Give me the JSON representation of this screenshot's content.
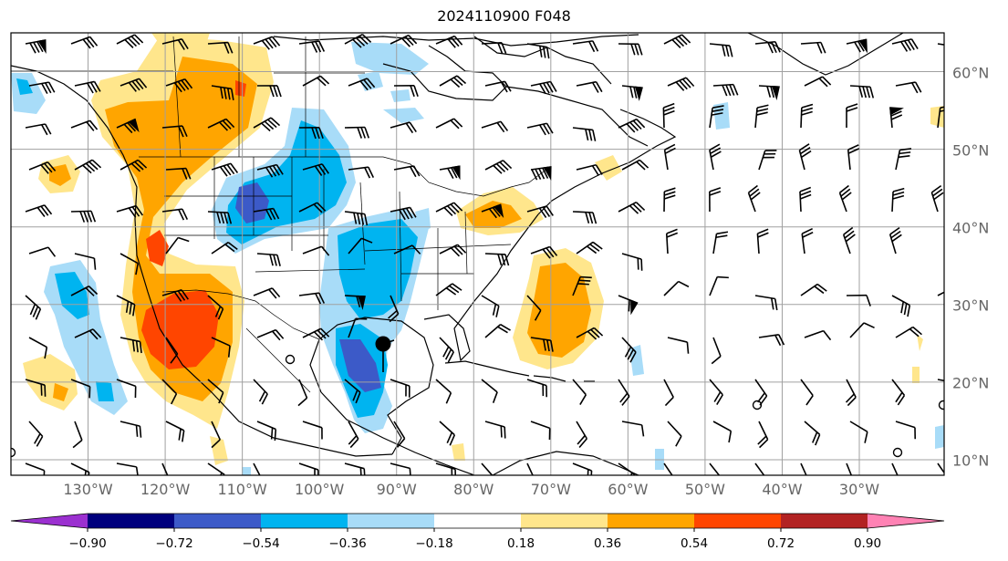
{
  "title": "2024110900 F048",
  "map": {
    "projection": "Plate Carree",
    "extent": {
      "lon": [
        -140,
        -19
      ],
      "lat": [
        8,
        65
      ]
    },
    "grid_lon": [
      -130,
      -120,
      -110,
      -100,
      -90,
      -80,
      -70,
      -60,
      -50,
      -40,
      -30
    ],
    "grid_lat": [
      10,
      20,
      30,
      40,
      50,
      60
    ],
    "lon_labels": [
      "130°W",
      "120°W",
      "110°W",
      "100°W",
      "90°W",
      "80°W",
      "70°W",
      "60°W",
      "50°W",
      "40°W",
      "30°W"
    ],
    "lat_labels": [
      "60°N",
      "50°N",
      "40°N",
      "30°N",
      "20°N",
      "10°N"
    ],
    "grid_color": "#a0a0a0",
    "storm_marker_label": "tropical cyclone marker"
  },
  "colorbar": {
    "ticks": [
      "−0.90",
      "−0.72",
      "−0.54",
      "−0.36",
      "−0.18",
      "0.18",
      "0.36",
      "0.54",
      "0.72",
      "0.90"
    ],
    "colors": [
      "#9b30d0",
      "#00007d",
      "#3c5ac8",
      "#00b4f0",
      "#a8dcf8",
      "#ffffff",
      "#ffe68c",
      "#ffa500",
      "#ff4500",
      "#b22222",
      "#ff82b4"
    ],
    "extend": "both"
  },
  "fields": {
    "positive_levels": [
      "#ffe68c",
      "#ffa500",
      "#ff4500"
    ],
    "negative_levels": [
      "#a8dcf8",
      "#00b4f0",
      "#3c5ac8"
    ]
  }
}
